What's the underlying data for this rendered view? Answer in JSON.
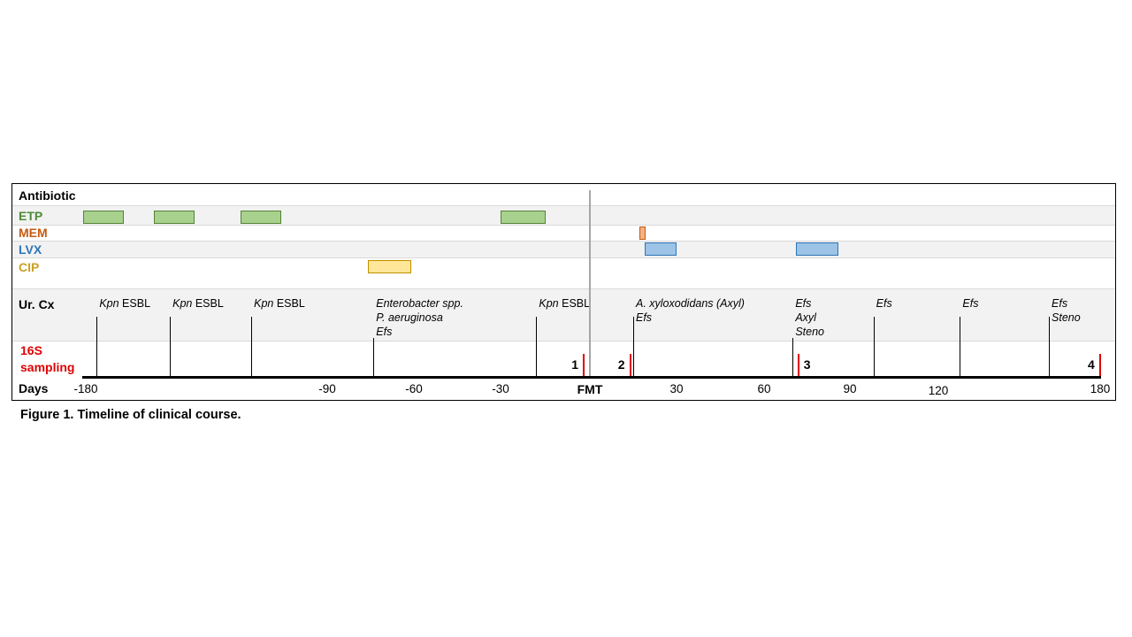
{
  "labels": {
    "antibiotic": "Antibiotic",
    "urcx": "Ur. Cx",
    "sampling_line1": "16S",
    "sampling_line2": "sampling",
    "days": "Days"
  },
  "antibiotics": [
    {
      "name": "ETP",
      "color": "#4e8a35",
      "fill": "#a9d18e",
      "border": "#548235",
      "courses_days": [
        [
          -180,
          -165
        ],
        [
          -154,
          -139
        ],
        [
          -122,
          -107
        ],
        [
          -30,
          -15
        ]
      ]
    },
    {
      "name": "MEM",
      "color": "#c55a11",
      "fill": "#f4b183",
      "border": "#c55a11",
      "courses_days": [
        [
          17,
          19
        ]
      ]
    },
    {
      "name": "LVX",
      "color": "#2e75b6",
      "fill": "#9dc3e6",
      "border": "#2e75b6",
      "courses_days": [
        [
          19,
          30
        ],
        [
          71,
          86
        ]
      ]
    },
    {
      "name": "CIP",
      "color": "#c9a227",
      "fill": "#ffe699",
      "border": "#bf9000",
      "courses_days": [
        [
          -76,
          -61
        ]
      ]
    }
  ],
  "cultures": [
    {
      "day": -175,
      "lines": [
        {
          "abbr": "Kpn",
          "rest": " ESBL"
        }
      ]
    },
    {
      "day": -148,
      "lines": [
        {
          "abbr": "Kpn",
          "rest": " ESBL"
        }
      ]
    },
    {
      "day": -118,
      "lines": [
        {
          "abbr": "Kpn",
          "rest": " ESBL"
        }
      ]
    },
    {
      "day": -74,
      "lines": [
        {
          "text": "Enterobacter spp."
        },
        {
          "text": "P. aeruginosa"
        },
        {
          "text": "Efs"
        }
      ]
    },
    {
      "day": -18,
      "lines": [
        {
          "abbr": "Kpn",
          "rest": " ESBL"
        }
      ]
    },
    {
      "day": 15,
      "lines": [
        {
          "text": "A. xyloxodidans  (Axyl)"
        },
        {
          "text": "Efs"
        }
      ]
    },
    {
      "day": 70,
      "lines": [
        {
          "text": "Efs"
        },
        {
          "text": "Axyl"
        },
        {
          "text": "Steno"
        }
      ]
    },
    {
      "day": 98,
      "lines": [
        {
          "text": "Efs"
        }
      ]
    },
    {
      "day": 128,
      "lines": [
        {
          "text": "Efs"
        }
      ]
    },
    {
      "day": 161,
      "lines": [
        {
          "text": "Efs"
        },
        {
          "text": "Steno"
        }
      ]
    }
  ],
  "samples": [
    {
      "label": "1",
      "day": -2
    },
    {
      "label": "2",
      "day": 14
    },
    {
      "label": "3",
      "day": 72
    },
    {
      "label": "4",
      "day": 180
    }
  ],
  "axis": {
    "fmt_label": "FMT",
    "fmt_day": 0,
    "ticks": [
      {
        "label": "-180",
        "day": -180
      },
      {
        "label": "-90",
        "day": -90
      },
      {
        "label": "-60",
        "day": -60
      },
      {
        "label": "-30",
        "day": -30
      },
      {
        "label": "30",
        "day": 30
      },
      {
        "label": "60",
        "day": 60
      },
      {
        "label": "90",
        "day": 90
      },
      {
        "label": "120",
        "day": 120
      },
      {
        "label": "180",
        "day": 180
      }
    ],
    "range_days": [
      -180,
      180
    ]
  },
  "caption": "Figure 1. Timeline of clinical course."
}
